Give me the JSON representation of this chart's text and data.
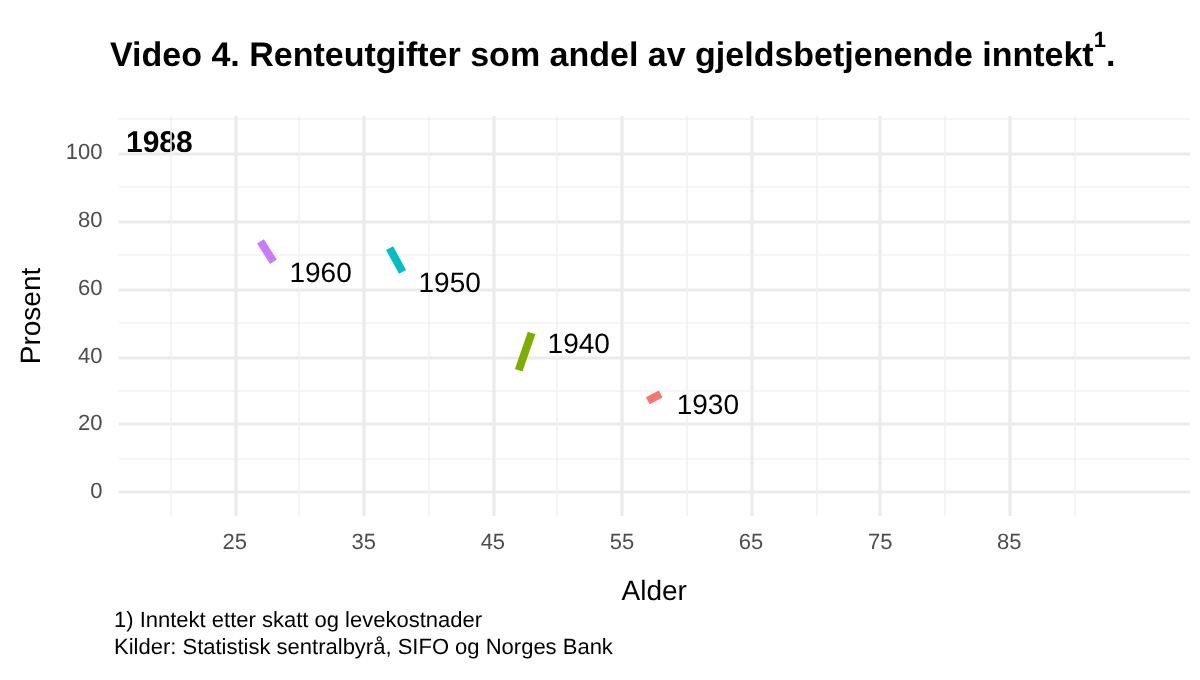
{
  "chart_data": {
    "type": "line",
    "title": "Video 4. Renteutgifter som andel av gjeldsbetjenende inntekt$^{1}$.",
    "xlabel": "Alder",
    "ylabel": "Prosent",
    "annotations": [
      "1988",
      "1) Inntekt etter skatt og levekostnader",
      "Kilder: Statistisk sentralbyrå, SIFO og Norges Bank"
    ],
    "series": [
      {
        "name": "1930",
        "color": "#f8766d",
        "x": [
          57,
          58
        ],
        "values": [
          27,
          29
        ]
      },
      {
        "name": "1940",
        "color": "#7cae00",
        "x": [
          47,
          48
        ],
        "values": [
          36,
          47
        ]
      },
      {
        "name": "1950",
        "color": "#00bfc4",
        "x": [
          37,
          38
        ],
        "values": [
          72,
          65
        ]
      },
      {
        "name": "1960",
        "color": "#c77cff",
        "x": [
          27,
          28
        ],
        "values": [
          74,
          68
        ]
      }
    ],
    "xlim": [
      16,
      99
    ],
    "ylim": [
      -7,
      111
    ],
    "xticks": [
      25,
      35,
      45,
      55,
      65,
      75,
      85
    ],
    "yticks": [
      0,
      20,
      40,
      60,
      80,
      100
    ],
    "grid": true,
    "legend": false,
    "marker": "none",
    "line_style": "solid"
  }
}
